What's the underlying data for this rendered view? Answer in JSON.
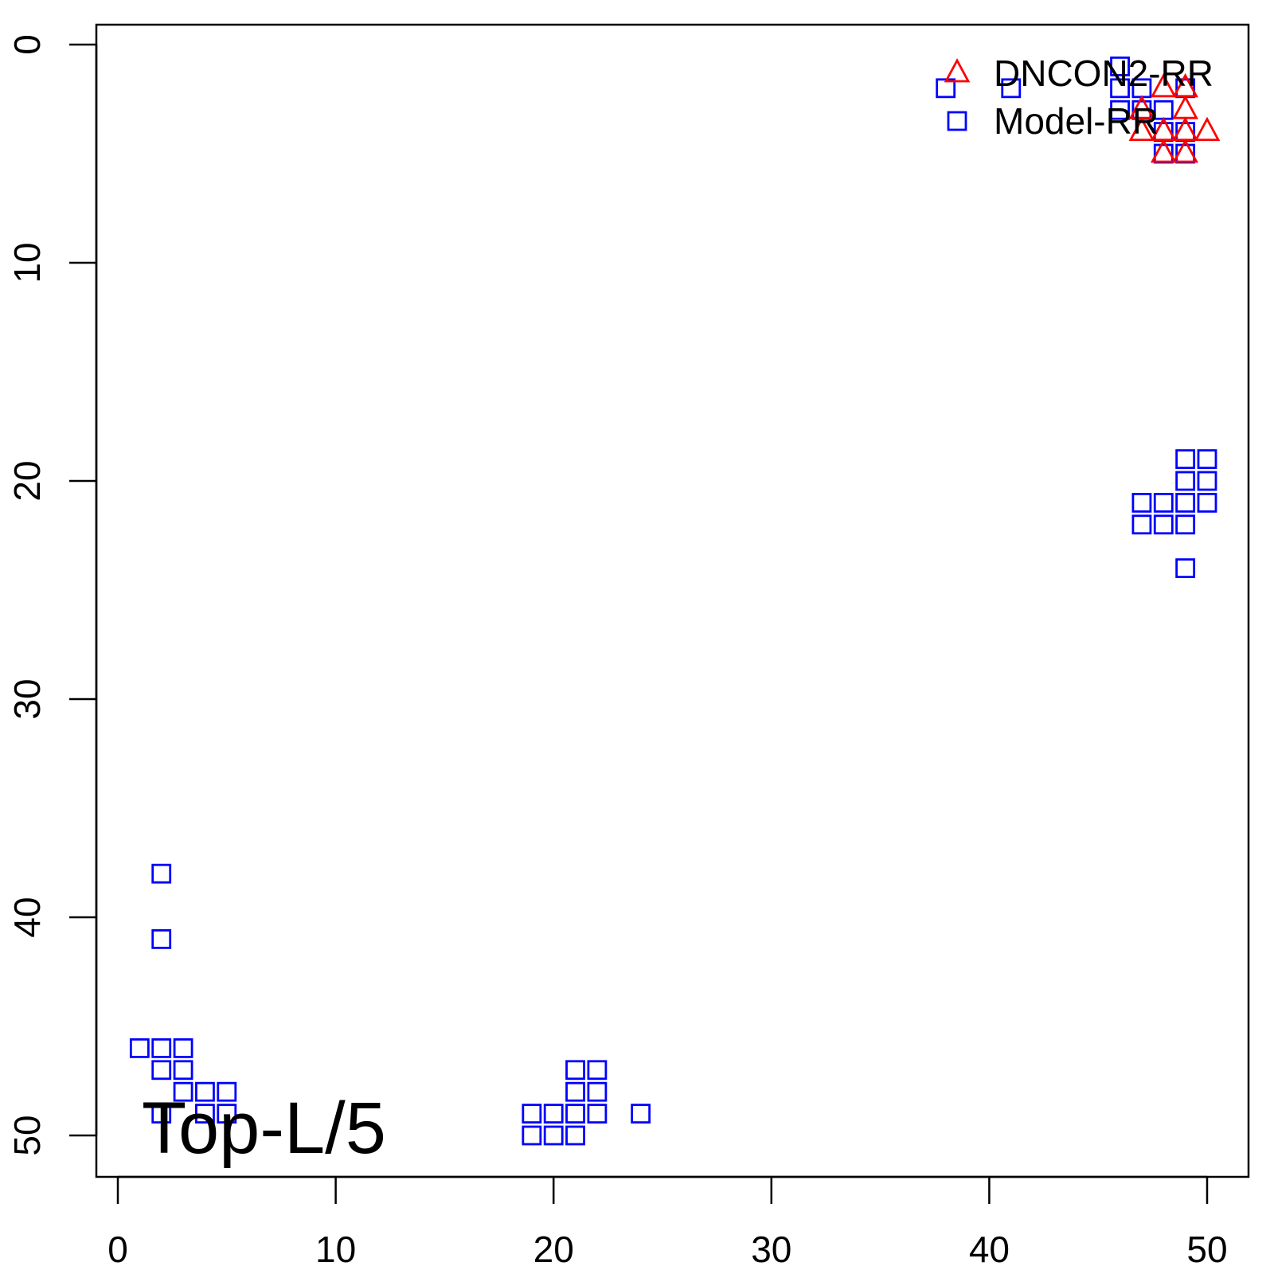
{
  "chart_data": {
    "type": "scatter",
    "title": "",
    "xlabel": "",
    "ylabel": "",
    "xlim": [
      -1,
      52
    ],
    "ylim": [
      52,
      -1
    ],
    "y_reversed": true,
    "x_ticks": [
      "0",
      "10",
      "20",
      "30",
      "40",
      "50"
    ],
    "y_ticks": [
      "0",
      "10",
      "20",
      "30",
      "40",
      "50"
    ],
    "grid": false,
    "legend_position": "top-right",
    "annotation": "Top-L/5",
    "series": [
      {
        "name": "DNCON2-RR",
        "marker": "triangle",
        "color": "#ff0000",
        "points": [
          [
            48,
            2
          ],
          [
            49,
            2
          ],
          [
            47,
            3
          ],
          [
            49,
            3
          ],
          [
            47,
            4
          ],
          [
            48,
            4
          ],
          [
            49,
            4
          ],
          [
            50,
            4
          ],
          [
            48,
            5
          ],
          [
            49,
            5
          ]
        ]
      },
      {
        "name": "Model-RR",
        "marker": "square",
        "color": "#0000ff",
        "points": [
          [
            38,
            2
          ],
          [
            41,
            2
          ],
          [
            46,
            1
          ],
          [
            46,
            2
          ],
          [
            47,
            2
          ],
          [
            49,
            2
          ],
          [
            46,
            3
          ],
          [
            47,
            3
          ],
          [
            48,
            3
          ],
          [
            48,
            4
          ],
          [
            49,
            4
          ],
          [
            48,
            5
          ],
          [
            49,
            5
          ],
          [
            49,
            19
          ],
          [
            50,
            19
          ],
          [
            49,
            20
          ],
          [
            50,
            20
          ],
          [
            47,
            21
          ],
          [
            48,
            21
          ],
          [
            49,
            21
          ],
          [
            50,
            21
          ],
          [
            47,
            22
          ],
          [
            48,
            22
          ],
          [
            49,
            22
          ],
          [
            49,
            24
          ],
          [
            2,
            38
          ],
          [
            2,
            41
          ],
          [
            1,
            46
          ],
          [
            2,
            46
          ],
          [
            3,
            46
          ],
          [
            2,
            47
          ],
          [
            3,
            47
          ],
          [
            3,
            48
          ],
          [
            4,
            48
          ],
          [
            5,
            48
          ],
          [
            2,
            49
          ],
          [
            4,
            49
          ],
          [
            5,
            49
          ],
          [
            21,
            47
          ],
          [
            22,
            47
          ],
          [
            21,
            48
          ],
          [
            22,
            48
          ],
          [
            19,
            49
          ],
          [
            20,
            49
          ],
          [
            21,
            49
          ],
          [
            22,
            49
          ],
          [
            24,
            49
          ],
          [
            19,
            50
          ],
          [
            20,
            50
          ],
          [
            21,
            50
          ]
        ]
      }
    ]
  }
}
